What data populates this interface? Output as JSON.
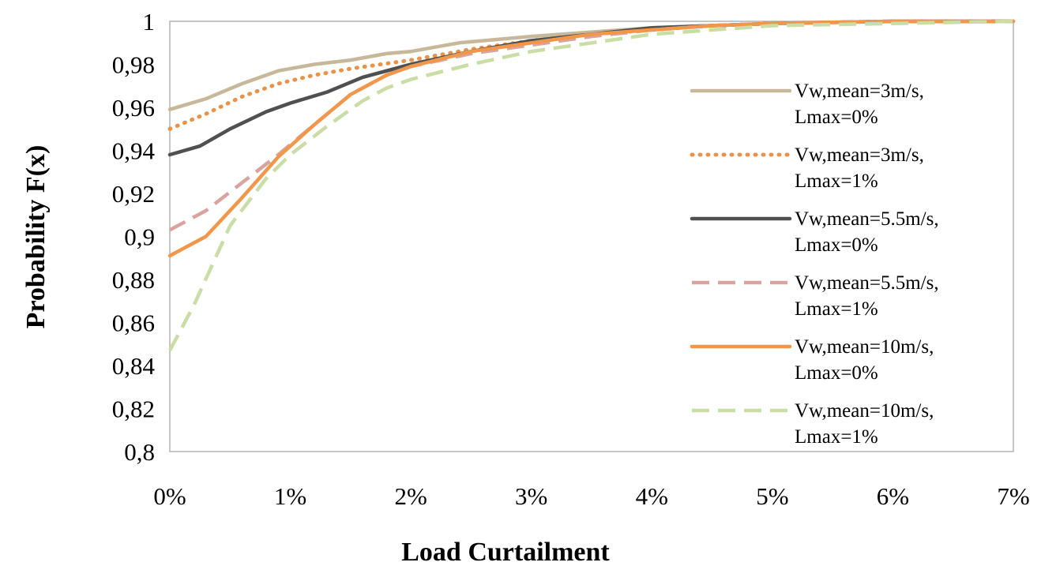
{
  "chart_data": {
    "type": "line",
    "title": "",
    "xlabel": "Load Curtailment",
    "ylabel": "Probability F(x)",
    "xlim": [
      0,
      7
    ],
    "ylim": [
      0.8,
      1.0
    ],
    "x_ticks": [
      "0%",
      "1%",
      "2%",
      "3%",
      "4%",
      "5%",
      "6%",
      "7%"
    ],
    "y_ticks": [
      "0,8",
      "0,82",
      "0,84",
      "0,86",
      "0,88",
      "0,9",
      "0,92",
      "0,94",
      "0,96",
      "0,98",
      "1"
    ],
    "grid": false,
    "legend_position": "right",
    "series": [
      {
        "name": "Vw,mean=3m/s, Lmax=0%",
        "legend_lines": [
          "Vw,mean=3m/s,",
          "Lmax=0%"
        ],
        "color": "#C7B89A",
        "dash": "solid",
        "x": [
          0,
          0.3,
          0.6,
          0.9,
          1.2,
          1.5,
          1.8,
          2.0,
          2.4,
          3.0,
          3.5,
          4.0,
          4.5,
          5.0,
          6.0,
          7.0
        ],
        "y": [
          0.959,
          0.964,
          0.971,
          0.977,
          0.98,
          0.982,
          0.985,
          0.986,
          0.99,
          0.993,
          0.995,
          0.997,
          0.998,
          0.999,
          1.0,
          1.0
        ]
      },
      {
        "name": "Vw,mean=3m/s, Lmax=1%",
        "legend_lines": [
          "Vw,mean=3m/s,",
          "Lmax=1%"
        ],
        "color": "#E8924A",
        "dash": "dotted",
        "x": [
          0,
          0.3,
          0.6,
          0.9,
          1.2,
          1.5,
          2.0,
          2.5,
          3.0,
          3.5,
          4.0,
          4.5,
          5.0,
          6.0,
          7.0
        ],
        "y": [
          0.95,
          0.957,
          0.965,
          0.971,
          0.975,
          0.978,
          0.982,
          0.987,
          0.991,
          0.994,
          0.996,
          0.998,
          0.999,
          1.0,
          1.0
        ]
      },
      {
        "name": "Vw,mean=5.5m/s, Lmax=0%",
        "legend_lines": [
          "Vw,mean=5.5m/s,",
          "Lmax=0%"
        ],
        "color": "#505050",
        "dash": "solid",
        "x": [
          0,
          0.25,
          0.5,
          0.8,
          1.0,
          1.3,
          1.6,
          2.0,
          2.5,
          3.0,
          3.5,
          4.0,
          4.5,
          5.0,
          6.0,
          7.0
        ],
        "y": [
          0.938,
          0.942,
          0.95,
          0.958,
          0.962,
          0.967,
          0.974,
          0.98,
          0.986,
          0.991,
          0.994,
          0.997,
          0.998,
          0.999,
          1.0,
          1.0
        ]
      },
      {
        "name": "Vw,mean=5.5m/s, Lmax=1%",
        "legend_lines": [
          "Vw,mean=5.5m/s,",
          "Lmax=1%"
        ],
        "color": "#D9A3A0",
        "dash": "dashed",
        "x": [
          0,
          0.3,
          0.6,
          0.9,
          1.2,
          1.5,
          1.8,
          2.0,
          2.5,
          3.0,
          3.5,
          4.0,
          4.5,
          5.0,
          6.0,
          7.0
        ],
        "y": [
          0.903,
          0.912,
          0.925,
          0.938,
          0.952,
          0.966,
          0.975,
          0.979,
          0.985,
          0.989,
          0.993,
          0.996,
          0.998,
          0.999,
          1.0,
          1.0
        ]
      },
      {
        "name": "Vw,mean=10m/s, Lmax=0%",
        "legend_lines": [
          "Vw,mean=10m/s,",
          "Lmax=0%"
        ],
        "color": "#F0974B",
        "dash": "solid",
        "x": [
          0,
          0.3,
          0.6,
          0.9,
          1.2,
          1.5,
          1.8,
          2.0,
          2.5,
          3.0,
          3.5,
          4.0,
          4.5,
          5.0,
          6.0,
          7.0
        ],
        "y": [
          0.891,
          0.9,
          0.918,
          0.937,
          0.952,
          0.966,
          0.975,
          0.979,
          0.986,
          0.99,
          0.994,
          0.996,
          0.998,
          0.999,
          1.0,
          1.0
        ]
      },
      {
        "name": "Vw,mean=10m/s, Lmax=1%",
        "legend_lines": [
          "Vw,mean=10m/s,",
          "Lmax=1%"
        ],
        "color": "#C9DDA5",
        "dash": "dashed",
        "x": [
          0,
          0.2,
          0.5,
          0.8,
          1.0,
          1.3,
          1.6,
          1.8,
          2.0,
          2.5,
          3.0,
          3.5,
          4.0,
          4.5,
          5.0,
          6.0,
          7.0
        ],
        "y": [
          0.847,
          0.868,
          0.905,
          0.927,
          0.938,
          0.951,
          0.963,
          0.969,
          0.973,
          0.98,
          0.986,
          0.99,
          0.994,
          0.996,
          0.998,
          0.999,
          1.0
        ]
      }
    ]
  }
}
